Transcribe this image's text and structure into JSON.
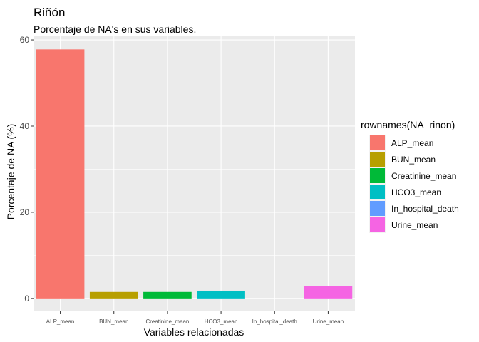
{
  "chart_data": {
    "type": "bar",
    "title": "Riñón",
    "subtitle": "Porcentaje de NA's en sus variables.",
    "xlabel": "Variables relacionadas",
    "ylabel": "Porcentaje de NA (%)",
    "categories": [
      "ALP_mean",
      "BUN_mean",
      "Creatinine_mean",
      "HCO3_mean",
      "In_hospital_death",
      "Urine_mean"
    ],
    "values": [
      57.8,
      1.5,
      1.5,
      1.8,
      0,
      2.8
    ],
    "colors": [
      "#F8766D",
      "#B79F00",
      "#00BA38",
      "#00BFC4",
      "#619CFF",
      "#F564E3"
    ],
    "ylim": [
      -3,
      61
    ],
    "yticks": [
      0,
      20,
      40,
      60
    ],
    "legend": {
      "title": "rownames(NA_rinon)",
      "position": "right",
      "entries": [
        "ALP_mean",
        "BUN_mean",
        "Creatinine_mean",
        "HCO3_mean",
        "In_hospital_death",
        "Urine_mean"
      ]
    },
    "grid": true,
    "panel_background": "#EBEBEB"
  }
}
